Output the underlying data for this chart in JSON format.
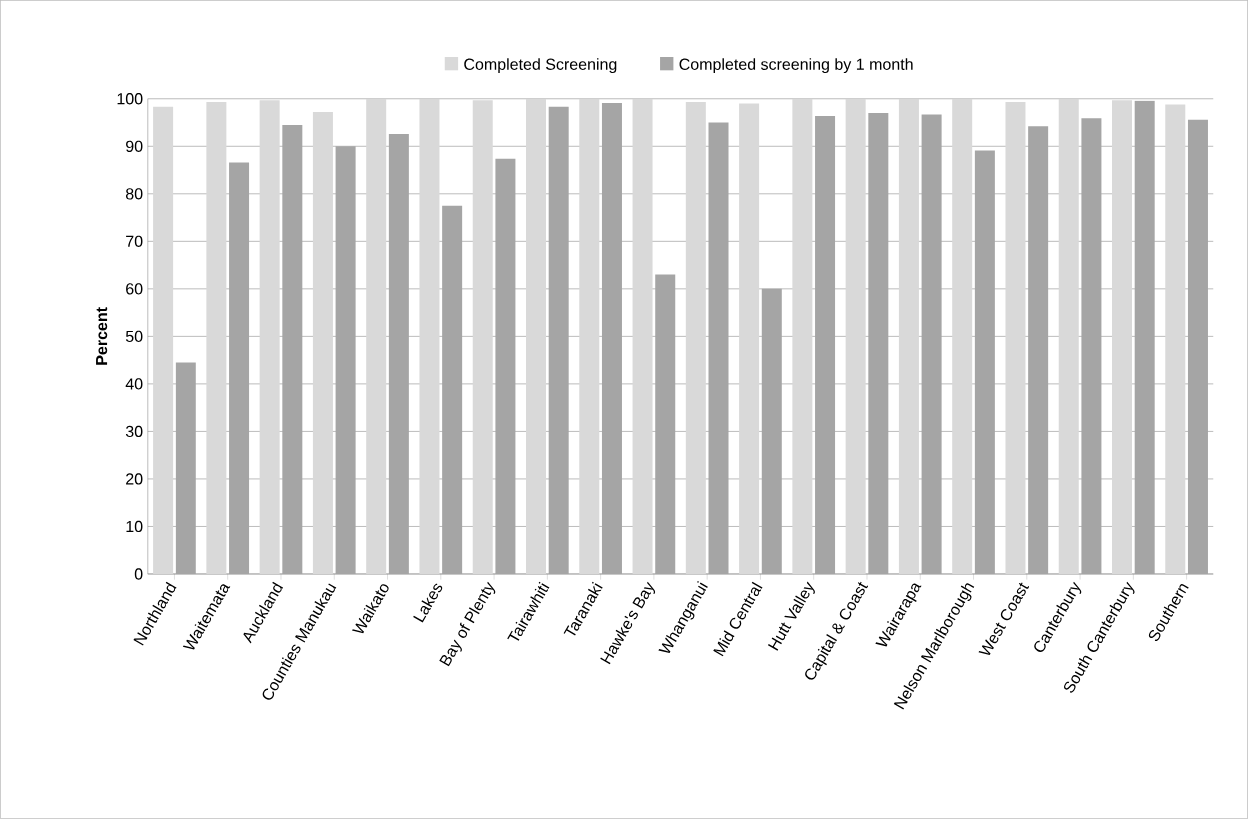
{
  "chart_data": {
    "type": "bar",
    "ylabel": "Percent",
    "categories": [
      "Northland",
      "Waitemata",
      "Auckland",
      "Counties Manukau",
      "Waikato",
      "Lakes",
      "Bay of Plenty",
      "Tairawhiti",
      "Taranaki",
      "Hawke's Bay",
      "Whanganui",
      "Mid Central",
      "Hutt Valley",
      "Capital & Coast",
      "Wairarapa",
      "Nelson Marlborough",
      "West Coast",
      "Canterbury",
      "South Canterbury",
      "Southern"
    ],
    "series": [
      {
        "name": "Completed Screening",
        "color": "#d9d9d9",
        "values": [
          98.3,
          99.3,
          99.7,
          97.2,
          100,
          100,
          99.7,
          100,
          100,
          100,
          99.3,
          99.0,
          100,
          100,
          100,
          100,
          99.3,
          100,
          99.7,
          98.8
        ]
      },
      {
        "name": "Completed screening by 1 month",
        "color": "#a5a5a5",
        "values": [
          44.5,
          86.6,
          94.5,
          90,
          92.6,
          77.5,
          87.4,
          98.3,
          99.1,
          63,
          95,
          60,
          96.4,
          97,
          96.7,
          89.1,
          94.2,
          95.9,
          99.6,
          95.6
        ]
      }
    ],
    "ylim": [
      0,
      100
    ],
    "yticks": [
      0,
      10,
      20,
      30,
      40,
      50,
      60,
      70,
      80,
      90,
      100
    ],
    "grid": "y",
    "legend": "top"
  }
}
